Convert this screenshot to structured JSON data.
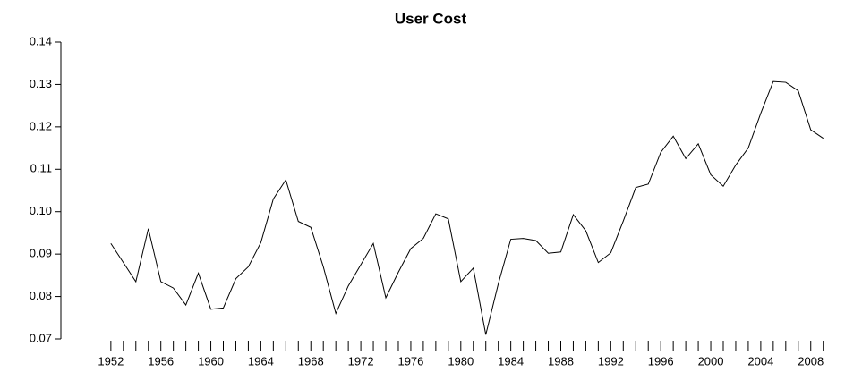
{
  "chart_data": {
    "type": "line",
    "title": "User Cost",
    "x": [
      1952,
      1953,
      1954,
      1955,
      1956,
      1957,
      1958,
      1959,
      1960,
      1961,
      1962,
      1963,
      1964,
      1965,
      1966,
      1967,
      1968,
      1969,
      1970,
      1971,
      1972,
      1973,
      1974,
      1975,
      1976,
      1977,
      1978,
      1979,
      1980,
      1981,
      1982,
      1983,
      1984,
      1985,
      1986,
      1987,
      1988,
      1989,
      1990,
      1991,
      1992,
      1993,
      1994,
      1995,
      1996,
      1997,
      1998,
      1999,
      2000,
      2001,
      2002,
      2003,
      2004,
      2005,
      2006,
      2007,
      2008,
      2009
    ],
    "series": [
      {
        "color": "#000000",
        "values": [
          0.0925,
          0.088,
          0.0835,
          0.096,
          0.0835,
          0.082,
          0.078,
          0.0855,
          0.077,
          0.0773,
          0.0842,
          0.087,
          0.0927,
          0.103,
          0.1075,
          0.0977,
          0.0963,
          0.087,
          0.076,
          0.0825,
          0.0875,
          0.0925,
          0.0797,
          0.0857,
          0.0913,
          0.0937,
          0.0995,
          0.0983,
          0.0835,
          0.0867,
          0.071,
          0.083,
          0.0935,
          0.0937,
          0.0932,
          0.0902,
          0.0905,
          0.0993,
          0.0955,
          0.088,
          0.0903,
          0.0978,
          0.1057,
          0.1065,
          0.114,
          0.1178,
          0.1125,
          0.116,
          0.1087,
          0.106,
          0.111,
          0.115,
          0.1232,
          0.1307,
          0.1305,
          0.1285,
          0.1193,
          0.1173
        ]
      }
    ],
    "xlim": [
      1948,
      2011.6
    ],
    "xticks": [
      1952,
      1956,
      1960,
      1964,
      1968,
      1972,
      1976,
      1980,
      1984,
      1988,
      1992,
      1996,
      2000,
      2004,
      2008
    ],
    "ylim": [
      0.07,
      0.14
    ],
    "yticks": [
      0.07,
      0.08,
      0.09,
      {
        "value": 0.1,
        "label": "0.10"
      },
      0.11,
      0.12,
      0.13,
      0.14
    ]
  }
}
